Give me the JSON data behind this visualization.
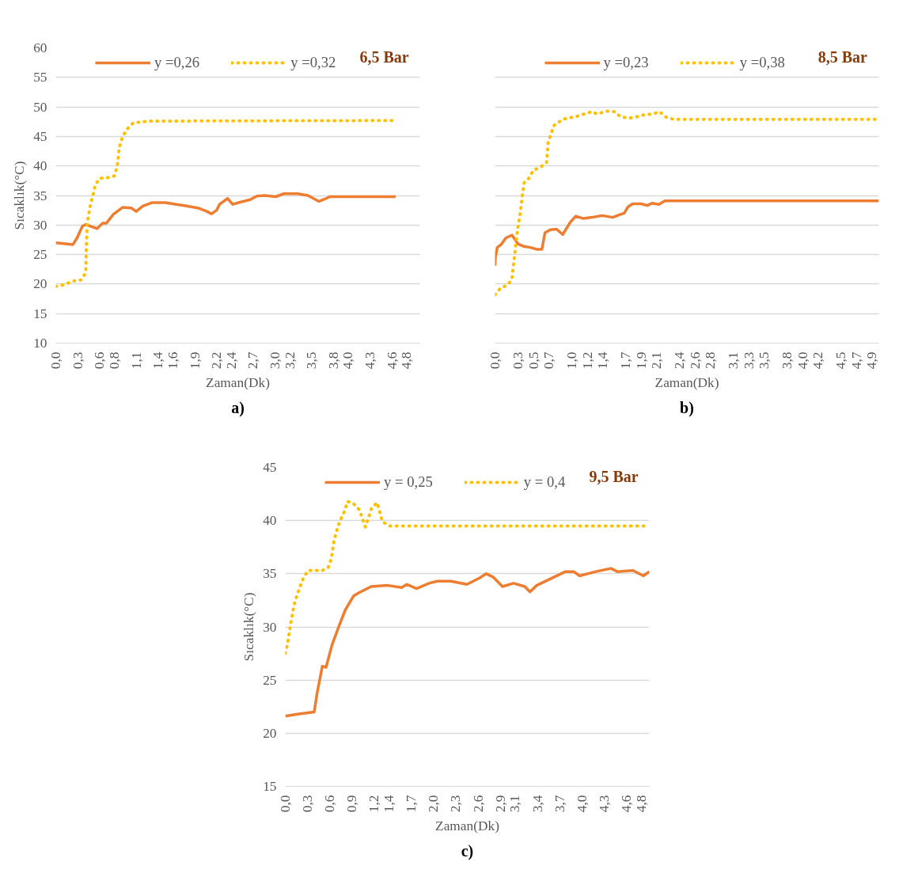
{
  "chart_data": [
    {
      "type": "line",
      "xlabel": "Zaman(Dk)",
      "ylabel": "Sıcaklık(°C)",
      "annotations": [
        "6,5 Bar",
        "a)"
      ],
      "legend": "top",
      "grid": "y",
      "xlim": [
        0,
        4.98
      ],
      "ylim": [
        10,
        60
      ],
      "yticks": [
        10,
        15,
        20,
        25,
        30,
        35,
        40,
        45,
        50,
        55,
        60
      ],
      "xticks": [
        {
          "value": 0.0,
          "label": "0,0"
        },
        {
          "value": 0.3,
          "label": "0,3"
        },
        {
          "value": 0.6,
          "label": "0,6"
        },
        {
          "value": 0.8,
          "label": "0,8"
        },
        {
          "value": 1.1,
          "label": "1,1"
        },
        {
          "value": 1.4,
          "label": "1,4"
        },
        {
          "value": 1.6,
          "label": "1,6"
        },
        {
          "value": 1.9,
          "label": "1,9"
        },
        {
          "value": 2.2,
          "label": "2,2"
        },
        {
          "value": 2.4,
          "label": "2,4"
        },
        {
          "value": 2.7,
          "label": "2,7"
        },
        {
          "value": 3.0,
          "label": "3,0"
        },
        {
          "value": 3.2,
          "label": "3,2"
        },
        {
          "value": 3.5,
          "label": "3,5"
        },
        {
          "value": 3.8,
          "label": "3,8"
        },
        {
          "value": 4.0,
          "label": "4,0"
        },
        {
          "value": 4.3,
          "label": "4,3"
        },
        {
          "value": 4.6,
          "label": "4,6"
        },
        {
          "value": 4.8,
          "label": "4,8"
        }
      ],
      "series": [
        {
          "name": "y =0,26",
          "color": "#ed7d31",
          "line_style": "solid",
          "x": [
            0,
            0.235,
            0.29,
            0.364,
            0.41,
            0.566,
            0.64,
            0.69,
            0.787,
            0.916,
            1.03,
            1.1,
            1.19,
            1.32,
            1.5,
            1.65,
            1.76,
            1.94,
            2.05,
            2.13,
            2.2,
            2.24,
            2.35,
            2.42,
            2.5,
            2.66,
            2.75,
            2.86,
            3.01,
            3.12,
            3.31,
            3.45,
            3.6,
            3.68,
            3.75,
            4.65
          ],
          "values": [
            27.0,
            26.7,
            27.8,
            29.8,
            30.1,
            29.4,
            30.3,
            30.3,
            31.8,
            33.0,
            32.9,
            32.3,
            33.2,
            33.8,
            33.8,
            33.5,
            33.3,
            32.9,
            32.4,
            31.9,
            32.5,
            33.5,
            34.5,
            33.5,
            33.8,
            34.3,
            34.9,
            35.0,
            34.8,
            35.3,
            35.3,
            35.0,
            34.0,
            34.4,
            34.8,
            34.8
          ]
        },
        {
          "name": "y =0,32",
          "color": "#ffc000",
          "line_style": "dotted",
          "x": [
            0,
            0.11,
            0.235,
            0.345,
            0.41,
            0.415,
            0.43,
            0.474,
            0.51,
            0.54,
            0.6,
            0.7,
            0.8,
            0.84,
            0.87,
            0.91,
            0.97,
            1.06,
            1.27,
            4.65
          ],
          "values": [
            19.6,
            19.9,
            20.5,
            20.7,
            21.9,
            25.3,
            30.3,
            33.5,
            35.1,
            36.8,
            37.9,
            38.0,
            38.3,
            39.9,
            43.2,
            44.8,
            46.2,
            47.3,
            47.6,
            47.7
          ]
        }
      ]
    },
    {
      "type": "line",
      "xlabel": "Zaman(Dk)",
      "annotations": [
        "8,5 Bar",
        "b)"
      ],
      "legend": "top",
      "grid": "y",
      "tick_labels": "x",
      "xlim": [
        0,
        4.99
      ],
      "ylim": [
        10,
        60
      ],
      "yticks": [
        10,
        15,
        20,
        25,
        30,
        35,
        40,
        45,
        50,
        55,
        60
      ],
      "xticks": [
        {
          "value": 0.0,
          "label": "0,0"
        },
        {
          "value": 0.3,
          "label": "0,3"
        },
        {
          "value": 0.5,
          "label": "0,5"
        },
        {
          "value": 0.7,
          "label": "0,7"
        },
        {
          "value": 1.0,
          "label": "1,0"
        },
        {
          "value": 1.2,
          "label": "1,2"
        },
        {
          "value": 1.4,
          "label": "1,4"
        },
        {
          "value": 1.7,
          "label": "1,7"
        },
        {
          "value": 1.9,
          "label": "1,9"
        },
        {
          "value": 2.1,
          "label": "2,1"
        },
        {
          "value": 2.4,
          "label": "2,4"
        },
        {
          "value": 2.6,
          "label": "2,6"
        },
        {
          "value": 2.8,
          "label": "2,8"
        },
        {
          "value": 3.1,
          "label": "3,1"
        },
        {
          "value": 3.3,
          "label": "3,3"
        },
        {
          "value": 3.5,
          "label": "3,5"
        },
        {
          "value": 3.8,
          "label": "3,8"
        },
        {
          "value": 4.0,
          "label": "4,0"
        },
        {
          "value": 4.2,
          "label": "4,2"
        },
        {
          "value": 4.5,
          "label": "4,5"
        },
        {
          "value": 4.7,
          "label": "4,7"
        },
        {
          "value": 4.9,
          "label": "4,9"
        }
      ],
      "series": [
        {
          "name": "y =0,23",
          "color": "#ed7d31",
          "line_style": "solid",
          "x": [
            0,
            0.005,
            0.03,
            0.08,
            0.14,
            0.22,
            0.3,
            0.37,
            0.46,
            0.54,
            0.61,
            0.65,
            0.72,
            0.8,
            0.88,
            0.98,
            1.05,
            1.15,
            1.26,
            1.39,
            1.53,
            1.61,
            1.68,
            1.73,
            1.79,
            1.9,
            1.98,
            2.04,
            2.13,
            2.21,
            4.99
          ],
          "values": [
            23.1,
            24.6,
            26.2,
            26.7,
            27.8,
            28.3,
            26.8,
            26.4,
            26.2,
            25.9,
            25.9,
            28.7,
            29.2,
            29.3,
            28.4,
            30.5,
            31.5,
            31.1,
            31.3,
            31.6,
            31.3,
            31.7,
            32.0,
            33.1,
            33.6,
            33.6,
            33.3,
            33.7,
            33.5,
            34.1,
            34.1
          ]
        },
        {
          "name": "y =0,38",
          "color": "#ffc000",
          "line_style": "dotted",
          "x": [
            0,
            0.07,
            0.17,
            0.22,
            0.25,
            0.29,
            0.33,
            0.36,
            0.38,
            0.44,
            0.5,
            0.59,
            0.67,
            0.69,
            0.73,
            0.77,
            0.88,
            1.06,
            1.26,
            1.33,
            1.45,
            1.55,
            1.64,
            1.74,
            1.83,
            1.95,
            2.05,
            2.14,
            2.22,
            2.32,
            4.99
          ],
          "values": [
            18.2,
            19.3,
            19.9,
            20.9,
            24.3,
            28.9,
            32.2,
            35.5,
            37.2,
            37.9,
            39.3,
            39.8,
            40.6,
            43.9,
            45.5,
            46.9,
            47.9,
            48.4,
            49.2,
            48.8,
            49.3,
            49.2,
            48.3,
            48.1,
            48.3,
            48.7,
            48.8,
            49.2,
            48.3,
            47.9,
            47.9
          ]
        }
      ]
    },
    {
      "type": "line",
      "xlabel": "Zaman(Dk)",
      "ylabel": "Sıcaklık(°C)",
      "annotations": [
        "9,5 Bar",
        "c)"
      ],
      "legend": "top",
      "grid": "y",
      "xlim": [
        0,
        4.91
      ],
      "ylim": [
        15,
        45
      ],
      "yticks": [
        15,
        20,
        25,
        30,
        35,
        40,
        45
      ],
      "xticks": [
        {
          "value": 0.0,
          "label": "0,0"
        },
        {
          "value": 0.3,
          "label": "0,3"
        },
        {
          "value": 0.6,
          "label": "0,6"
        },
        {
          "value": 0.9,
          "label": "0,9"
        },
        {
          "value": 1.2,
          "label": "1,2"
        },
        {
          "value": 1.4,
          "label": "1,4"
        },
        {
          "value": 1.7,
          "label": "1,7"
        },
        {
          "value": 2.0,
          "label": "2,0"
        },
        {
          "value": 2.3,
          "label": "2,3"
        },
        {
          "value": 2.6,
          "label": "2,6"
        },
        {
          "value": 2.9,
          "label": "2,9"
        },
        {
          "value": 3.1,
          "label": "3,1"
        },
        {
          "value": 3.4,
          "label": "3,4"
        },
        {
          "value": 3.7,
          "label": "3,7"
        },
        {
          "value": 4.0,
          "label": "4,0"
        },
        {
          "value": 4.3,
          "label": "4,3"
        },
        {
          "value": 4.6,
          "label": "4,6"
        },
        {
          "value": 4.8,
          "label": "4,8"
        }
      ],
      "series": [
        {
          "name": "y = 0,25",
          "color": "#ed7d31",
          "line_style": "solid",
          "x": [
            0,
            0.166,
            0.39,
            0.43,
            0.5,
            0.55,
            0.63,
            0.72,
            0.81,
            0.92,
            0.99,
            1.16,
            1.38,
            1.57,
            1.64,
            1.77,
            1.94,
            2.05,
            2.23,
            2.45,
            2.62,
            2.71,
            2.8,
            2.93,
            3.08,
            3.23,
            3.3,
            3.39,
            3.63,
            3.78,
            3.89,
            3.97,
            4.19,
            4.39,
            4.48,
            4.69,
            4.83,
            4.91
          ],
          "values": [
            21.6,
            21.8,
            22.0,
            23.8,
            26.3,
            26.2,
            28.3,
            30.0,
            31.6,
            32.9,
            33.2,
            33.8,
            33.9,
            33.7,
            34.0,
            33.6,
            34.1,
            34.3,
            34.3,
            34.0,
            34.6,
            35.0,
            34.7,
            33.8,
            34.1,
            33.8,
            33.3,
            33.9,
            34.7,
            35.2,
            35.2,
            34.8,
            35.2,
            35.5,
            35.2,
            35.3,
            34.8,
            35.2
          ]
        },
        {
          "name": "y = 0,4",
          "color": "#ffc000",
          "line_style": "dotted",
          "x": [
            0,
            0.03,
            0.07,
            0.12,
            0.16,
            0.2,
            0.25,
            0.31,
            0.5,
            0.58,
            0.62,
            0.66,
            0.7,
            0.74,
            0.8,
            0.84,
            0.92,
            1.0,
            1.08,
            1.12,
            1.16,
            1.24,
            1.31,
            1.4,
            4.91
          ],
          "values": [
            27.5,
            28.4,
            30.2,
            32.1,
            33.0,
            33.8,
            34.7,
            35.3,
            35.3,
            35.6,
            36.4,
            38.2,
            39.2,
            40.0,
            40.9,
            41.8,
            41.6,
            41.0,
            39.4,
            40.2,
            41.1,
            41.7,
            39.9,
            39.5,
            39.5
          ]
        }
      ]
    }
  ]
}
